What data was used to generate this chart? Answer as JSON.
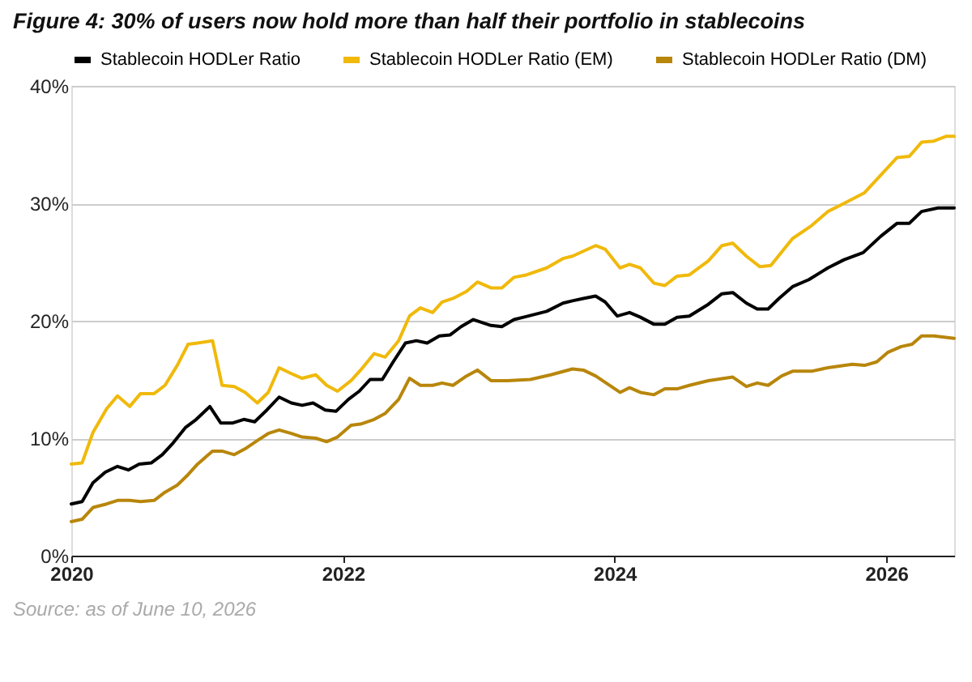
{
  "chart_data": {
    "type": "line",
    "title": "Figure 4: 30% of users now hold more than half their portfolio in stablecoins",
    "annotations": [
      "Source: as of June 10, 2026"
    ],
    "xlim": [
      2020,
      2026.5
    ],
    "xticks": [
      2020,
      2022,
      2024,
      2026
    ],
    "ylim": [
      0,
      40
    ],
    "yticks": [
      {
        "value": 0,
        "label": "0%"
      },
      {
        "value": 10,
        "label": "10%"
      },
      {
        "value": 20,
        "label": "20%"
      },
      {
        "value": 30,
        "label": "30%"
      },
      {
        "value": 40,
        "label": "40%"
      }
    ],
    "grid": "y",
    "legend": "top",
    "series": [
      {
        "name": "Stablecoin HODLer Ratio",
        "color": "#000000",
        "x": [
          2020.0,
          2020.08,
          2020.16,
          2020.25,
          2020.34,
          2020.42,
          2020.5,
          2020.59,
          2020.67,
          2020.75,
          2020.84,
          2020.92,
          2021.02,
          2021.1,
          2021.19,
          2021.27,
          2021.35,
          2021.44,
          2021.53,
          2021.62,
          2021.7,
          2021.78,
          2021.87,
          2021.95,
          2022.04,
          2022.12,
          2022.2,
          2022.29,
          2022.37,
          2022.46,
          2022.54,
          2022.62,
          2022.71,
          2022.79,
          2022.87,
          2022.96,
          2023.09,
          2023.17,
          2023.26,
          2023.33,
          2023.5,
          2023.62,
          2023.69,
          2023.77,
          2023.86,
          2023.93,
          2024.02,
          2024.11,
          2024.19,
          2024.29,
          2024.37,
          2024.46,
          2024.55,
          2024.69,
          2024.79,
          2024.87,
          2024.97,
          2025.05,
          2025.13,
          2025.21,
          2025.31,
          2025.43,
          2025.57,
          2025.69,
          2025.83,
          2025.96,
          2026.08,
          2026.17,
          2026.26,
          2026.38,
          2026.5
        ],
        "values": [
          4.4,
          4.6,
          6.2,
          7.1,
          7.6,
          7.3,
          7.8,
          7.9,
          8.6,
          9.6,
          10.9,
          11.6,
          12.7,
          11.3,
          11.3,
          11.6,
          11.4,
          12.4,
          13.5,
          13.0,
          12.8,
          13.0,
          12.4,
          12.3,
          13.3,
          14.0,
          15.0,
          15.0,
          16.5,
          18.1,
          18.3,
          18.1,
          18.7,
          18.8,
          19.5,
          20.1,
          19.6,
          19.5,
          20.1,
          20.3,
          20.8,
          21.5,
          21.7,
          21.9,
          22.1,
          21.6,
          20.4,
          20.7,
          20.3,
          19.7,
          19.7,
          20.3,
          20.4,
          21.4,
          22.3,
          22.4,
          21.5,
          21.0,
          21.0,
          21.9,
          22.9,
          23.5,
          24.5,
          25.2,
          25.8,
          27.2,
          28.3,
          28.3,
          29.3,
          29.6,
          29.6
        ]
      },
      {
        "name": "Stablecoin HODLer Ratio (EM)",
        "color": "#f0b90b",
        "x": [
          2020.0,
          2020.08,
          2020.16,
          2020.26,
          2020.34,
          2020.43,
          2020.51,
          2020.61,
          2020.69,
          2020.78,
          2020.86,
          2020.93,
          2021.04,
          2021.11,
          2021.2,
          2021.28,
          2021.37,
          2021.45,
          2021.53,
          2021.62,
          2021.7,
          2021.8,
          2021.88,
          2021.96,
          2022.06,
          2022.13,
          2022.23,
          2022.31,
          2022.41,
          2022.49,
          2022.57,
          2022.66,
          2022.73,
          2022.81,
          2022.91,
          2022.99,
          2023.09,
          2023.17,
          2023.26,
          2023.35,
          2023.5,
          2023.62,
          2023.69,
          2023.86,
          2023.93,
          2024.04,
          2024.11,
          2024.19,
          2024.29,
          2024.37,
          2024.46,
          2024.55,
          2024.69,
          2024.79,
          2024.87,
          2024.97,
          2025.07,
          2025.15,
          2025.31,
          2025.45,
          2025.57,
          2025.69,
          2025.84,
          2025.96,
          2026.08,
          2026.17,
          2026.26,
          2026.35,
          2026.44,
          2026.5
        ],
        "values": [
          7.8,
          7.9,
          10.5,
          12.5,
          13.6,
          12.7,
          13.8,
          13.8,
          14.5,
          16.2,
          18.0,
          18.1,
          18.3,
          14.5,
          14.4,
          13.9,
          13.0,
          13.9,
          16.0,
          15.5,
          15.1,
          15.4,
          14.5,
          14.0,
          14.9,
          15.8,
          17.2,
          16.9,
          18.3,
          20.4,
          21.1,
          20.7,
          21.6,
          21.9,
          22.5,
          23.3,
          22.8,
          22.8,
          23.7,
          23.9,
          24.5,
          25.3,
          25.5,
          26.4,
          26.1,
          24.5,
          24.8,
          24.5,
          23.2,
          23.0,
          23.8,
          23.9,
          25.1,
          26.4,
          26.6,
          25.5,
          24.6,
          24.7,
          27.0,
          28.1,
          29.3,
          30.0,
          30.9,
          32.4,
          33.9,
          34.0,
          35.2,
          35.3,
          35.7,
          35.7
        ]
      },
      {
        "name": "Stablecoin HODLer Ratio (DM)",
        "color": "#b8860b",
        "x": [
          2020.0,
          2020.08,
          2020.16,
          2020.26,
          2020.34,
          2020.43,
          2020.51,
          2020.61,
          2020.69,
          2020.78,
          2020.86,
          2020.93,
          2021.04,
          2021.11,
          2021.2,
          2021.28,
          2021.37,
          2021.45,
          2021.53,
          2021.62,
          2021.7,
          2021.8,
          2021.88,
          2021.96,
          2022.06,
          2022.13,
          2022.23,
          2022.31,
          2022.41,
          2022.49,
          2022.57,
          2022.66,
          2022.73,
          2022.81,
          2022.91,
          2022.99,
          2023.09,
          2023.21,
          2023.38,
          2023.53,
          2023.69,
          2023.77,
          2023.86,
          2024.04,
          2024.11,
          2024.19,
          2024.29,
          2024.37,
          2024.46,
          2024.55,
          2024.69,
          2024.87,
          2024.97,
          2025.05,
          2025.13,
          2025.23,
          2025.31,
          2025.45,
          2025.57,
          2025.75,
          2025.84,
          2025.93,
          2026.01,
          2026.11,
          2026.19,
          2026.26,
          2026.35,
          2026.5
        ],
        "values": [
          2.9,
          3.1,
          4.1,
          4.4,
          4.7,
          4.7,
          4.6,
          4.7,
          5.4,
          6.0,
          6.9,
          7.8,
          8.9,
          8.9,
          8.6,
          9.1,
          9.8,
          10.4,
          10.7,
          10.4,
          10.1,
          10.0,
          9.7,
          10.1,
          11.1,
          11.2,
          11.6,
          12.1,
          13.3,
          15.1,
          14.5,
          14.5,
          14.7,
          14.5,
          15.3,
          15.8,
          14.9,
          14.9,
          15.0,
          15.4,
          15.9,
          15.8,
          15.3,
          13.9,
          14.3,
          13.9,
          13.7,
          14.2,
          14.2,
          14.5,
          14.9,
          15.2,
          14.4,
          14.7,
          14.5,
          15.3,
          15.7,
          15.7,
          16.0,
          16.3,
          16.2,
          16.5,
          17.3,
          17.8,
          18.0,
          18.7,
          18.7,
          18.5
        ]
      }
    ]
  }
}
